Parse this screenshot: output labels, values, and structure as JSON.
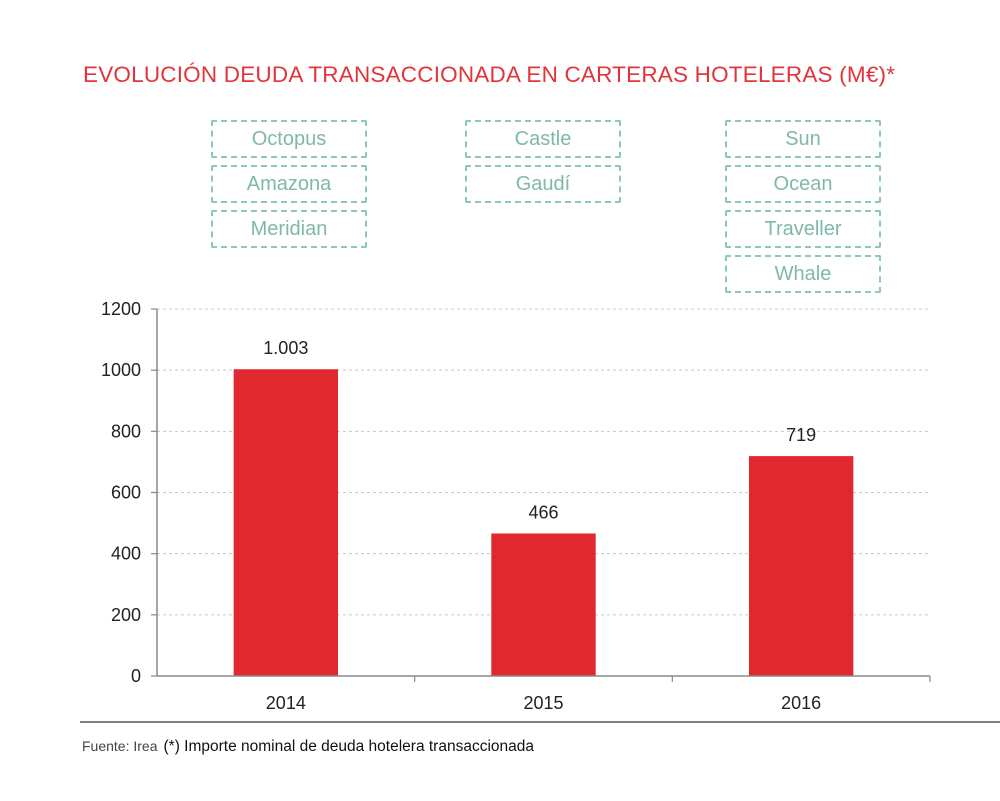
{
  "chart_data": {
    "type": "bar",
    "title": "EVOLUCIÓN DEUDA TRANSACCIONADA EN CARTERAS HOTELERAS (M€)*",
    "categories": [
      "2014",
      "2015",
      "2016"
    ],
    "values": [
      1003,
      466,
      719
    ],
    "data_labels": [
      "1.003",
      "466",
      "719"
    ],
    "yticks": [
      0,
      200,
      400,
      600,
      800,
      1000,
      1200
    ],
    "ylim": [
      0,
      1200
    ],
    "grid": true,
    "bar_color": "#e1282f",
    "portfolio_tags": [
      [
        "Octopus",
        "Amazona",
        "Meridian"
      ],
      [
        "Castle",
        "Gaudí"
      ],
      [
        "Sun",
        "Ocean",
        "Traveller",
        "Whale"
      ]
    ],
    "tag_color": "#8cc7bb"
  },
  "footer": {
    "source": "Fuente: Irea",
    "note": "(*) Importe nominal de deuda hotelera transaccionada"
  }
}
